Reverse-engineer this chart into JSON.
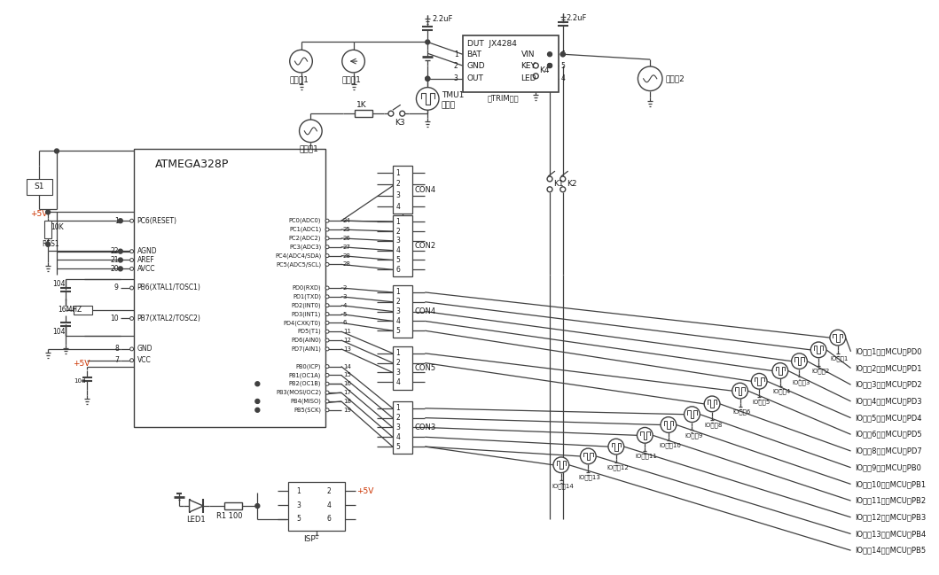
{
  "bg_color": "#ffffff",
  "lc": "#404040",
  "figsize": [
    10.59,
    6.49
  ],
  "dpi": 100,
  "mcu_pins_left": [
    [
      1,
      "PC6(RESET)",
      248
    ],
    [
      22,
      "AGND",
      283
    ],
    [
      21,
      "AREF",
      293
    ],
    [
      20,
      "AVCC",
      303
    ],
    [
      9,
      "PB6(XTAL1/TOSC1)",
      325
    ],
    [
      10,
      "PB7(XTAL2/TOSC2)",
      360
    ],
    [
      8,
      "GND",
      395
    ],
    [
      7,
      "VCC",
      408
    ]
  ],
  "mcu_pins_right_pc": [
    [
      24,
      "PC0(ADC0)",
      248
    ],
    [
      25,
      "PC1(ADC1)",
      258
    ],
    [
      26,
      "PC2(ADC2)",
      268
    ],
    [
      27,
      "PC3(ADC3)",
      278
    ],
    [
      28,
      "PC4(ADC4/SDA)",
      288
    ],
    [
      28,
      "PC5(ADC5/SCL)",
      298
    ]
  ],
  "mcu_pins_right_pd": [
    [
      2,
      "PD0(RXD)",
      325
    ],
    [
      3,
      "PD1(TXD)",
      335
    ],
    [
      4,
      "PD2(INT0)",
      345
    ],
    [
      5,
      "PD3(INT1)",
      355
    ],
    [
      6,
      "PD4(CXK/T0)",
      365
    ],
    [
      11,
      "PD5(T1)",
      375
    ],
    [
      12,
      "PD6(AIN0)",
      385
    ],
    [
      13,
      "PD7(AIN1)",
      395
    ]
  ],
  "mcu_pins_right_pb": [
    [
      14,
      "PB0(ICP)",
      415
    ],
    [
      15,
      "PB1(OC1A)",
      425
    ],
    [
      16,
      "PB2(OC1B)",
      435
    ],
    [
      17,
      "PB3(MOSI/OC2)",
      445
    ],
    [
      18,
      "PB4(MISO)",
      455
    ],
    [
      19,
      "PB5(SCK)",
      465
    ]
  ],
  "io_ports": [
    [
      960,
      382,
      "IO端口1"
    ],
    [
      938,
      396,
      "IO端口2"
    ],
    [
      916,
      409,
      "IO端口3"
    ],
    [
      894,
      420,
      "IO端口4"
    ],
    [
      870,
      432,
      "IO端口5"
    ],
    [
      848,
      443,
      "IO端口6"
    ],
    [
      816,
      458,
      "IO端口8"
    ],
    [
      793,
      470,
      "IO端口9"
    ],
    [
      766,
      482,
      "IO端口10"
    ],
    [
      739,
      494,
      "IO端口11"
    ],
    [
      706,
      507,
      "IO端口12"
    ],
    [
      674,
      518,
      "IO端口13"
    ],
    [
      643,
      528,
      "IO端口14"
    ]
  ],
  "right_annotations": [
    "IO端口1对应MCU的PD0",
    "IO端口2对应MCU的PD1",
    "IO端口3对应MCU的PD2",
    "IO端口4对应MCU的PD3",
    "IO端口5对应MCU的PD4",
    "IO端口6对应MCU的PD5",
    "IO端口8对应MCU的PD7",
    "IO端口9对应MCU的PB0",
    "IO端口10对应MCU的PB1",
    "IO端口11对应MCU的PB2",
    "IO端口12对应MCU的PB3",
    "IO端口13对应MCU的PB4",
    "IO端口14对应MCU的PB5"
  ]
}
